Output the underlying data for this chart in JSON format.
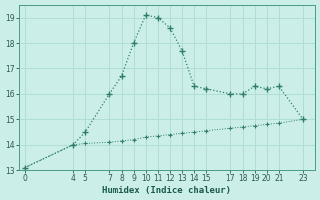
{
  "xlabel": "Humidex (Indice chaleur)",
  "line1_x": [
    0,
    4,
    5,
    7,
    8,
    9,
    10,
    11,
    12,
    13,
    14,
    15,
    17,
    18,
    19,
    20,
    21,
    23
  ],
  "line1_y": [
    13.1,
    14.0,
    14.5,
    16.0,
    16.7,
    18.0,
    19.1,
    19.0,
    18.6,
    17.7,
    16.3,
    16.2,
    16.0,
    16.0,
    16.3,
    16.2,
    16.3,
    15.0
  ],
  "line2_x": [
    0,
    4,
    5,
    7,
    8,
    9,
    10,
    11,
    12,
    13,
    14,
    15,
    17,
    18,
    19,
    20,
    21,
    23
  ],
  "line2_y": [
    13.1,
    14.0,
    14.05,
    14.1,
    14.15,
    14.2,
    14.3,
    14.35,
    14.4,
    14.45,
    14.5,
    14.55,
    14.65,
    14.7,
    14.75,
    14.8,
    14.85,
    15.0
  ],
  "line_color": "#2e7d6e",
  "bg_color": "#cceee8",
  "grid_color": "#b0ddd8",
  "xlim": [
    -0.5,
    24
  ],
  "ylim": [
    13,
    19.5
  ],
  "yticks": [
    13,
    14,
    15,
    16,
    17,
    18,
    19
  ],
  "xticks": [
    0,
    4,
    5,
    7,
    8,
    9,
    10,
    11,
    12,
    13,
    14,
    15,
    17,
    18,
    19,
    20,
    21,
    23
  ]
}
